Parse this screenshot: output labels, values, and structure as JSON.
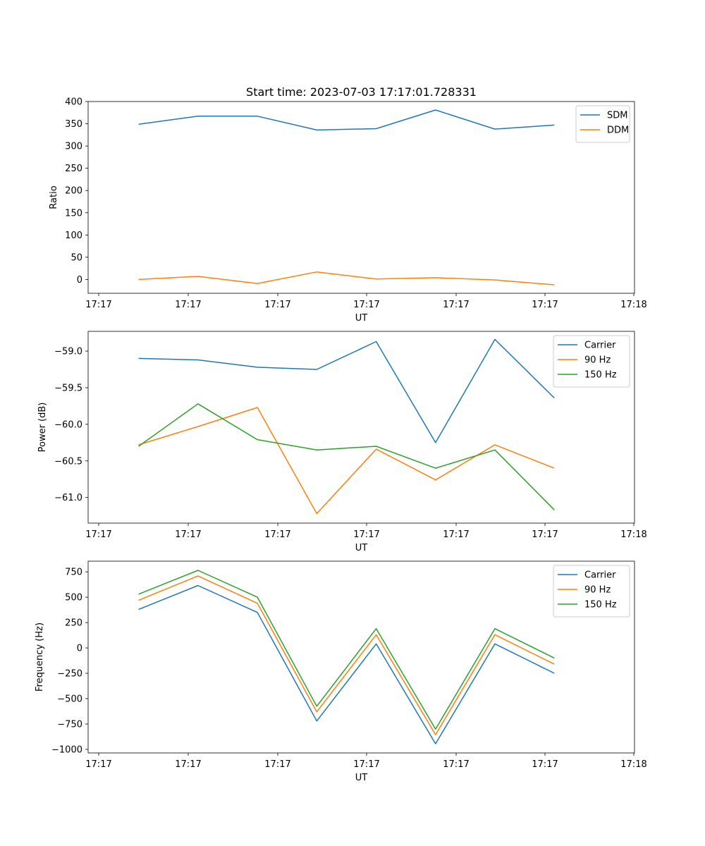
{
  "chart_data": [
    {
      "type": "line",
      "title": "Start time: 2023-07-03 17:17:01.728331",
      "xlabel": "UT",
      "ylabel": "Ratio",
      "x_tick_labels": [
        "17:17",
        "17:17",
        "17:17",
        "17:17",
        "17:17",
        "17:17",
        "17:18"
      ],
      "x": [
        1,
        2,
        3,
        4,
        5,
        6,
        7,
        8
      ],
      "xlim": [
        0.15,
        9.35
      ],
      "ylim": [
        -31,
        400
      ],
      "y_ticks": [
        0,
        50,
        100,
        150,
        200,
        250,
        300,
        350,
        400
      ],
      "y_tick_labels": [
        "0",
        "50",
        "100",
        "150",
        "200",
        "250",
        "300",
        "350",
        "400"
      ],
      "legend": "top-right",
      "series": [
        {
          "name": "SDM",
          "color": "#1f77b4",
          "values": [
            349,
            367,
            367,
            336,
            339,
            381,
            338,
            347
          ]
        },
        {
          "name": "DDM",
          "color": "#ff7f0e",
          "values": [
            0,
            7,
            -9,
            17,
            1,
            4,
            -1,
            -12
          ]
        }
      ]
    },
    {
      "type": "line",
      "title": "",
      "xlabel": "UT",
      "ylabel": "Power (dB)",
      "x_tick_labels": [
        "17:17",
        "17:17",
        "17:17",
        "17:17",
        "17:17",
        "17:17",
        "17:18"
      ],
      "x": [
        1,
        2,
        3,
        4,
        5,
        6,
        7,
        8
      ],
      "xlim": [
        0.15,
        9.35
      ],
      "ylim": [
        -61.35,
        -58.73
      ],
      "y_ticks": [
        -61.0,
        -60.5,
        -60.0,
        -59.5,
        -59.0
      ],
      "y_tick_labels": [
        "−61.0",
        "−60.5",
        "−60.0",
        "−59.5",
        "−59.0"
      ],
      "legend": "top-right",
      "series": [
        {
          "name": "Carrier",
          "color": "#1f77b4",
          "values": [
            -59.1,
            -59.12,
            -59.22,
            -59.25,
            -58.87,
            -60.25,
            -58.84,
            -59.64
          ]
        },
        {
          "name": "90 Hz",
          "color": "#ff7f0e",
          "values": [
            -60.28,
            -60.03,
            -59.77,
            -61.22,
            -60.34,
            -60.76,
            -60.28,
            -60.6
          ]
        },
        {
          "name": "150 Hz",
          "color": "#2ca02c",
          "values": [
            -60.3,
            -59.72,
            -60.21,
            -60.35,
            -60.3,
            -60.6,
            -60.35,
            -61.17
          ]
        }
      ]
    },
    {
      "type": "line",
      "title": "",
      "xlabel": "UT",
      "ylabel": "Frequency (Hz)",
      "x_tick_labels": [
        "17:17",
        "17:17",
        "17:17",
        "17:17",
        "17:17",
        "17:17",
        "17:18"
      ],
      "x": [
        1,
        2,
        3,
        4,
        5,
        6,
        7,
        8
      ],
      "xlim": [
        0.15,
        9.35
      ],
      "ylim": [
        -1035,
        855
      ],
      "y_ticks": [
        -1000,
        -750,
        -500,
        -250,
        0,
        250,
        500,
        750
      ],
      "y_tick_labels": [
        "−1000",
        "−750",
        "−500",
        "−250",
        "0",
        "250",
        "500",
        "750"
      ],
      "legend": "top-right",
      "series": [
        {
          "name": "Carrier",
          "color": "#1f77b4",
          "values": [
            380,
            615,
            350,
            -720,
            40,
            -945,
            40,
            -250
          ]
        },
        {
          "name": "90 Hz",
          "color": "#ff7f0e",
          "values": [
            470,
            710,
            440,
            -630,
            130,
            -855,
            130,
            -160
          ]
        },
        {
          "name": "150 Hz",
          "color": "#2ca02c",
          "values": [
            530,
            765,
            500,
            -575,
            190,
            -800,
            190,
            -100
          ]
        }
      ]
    }
  ]
}
